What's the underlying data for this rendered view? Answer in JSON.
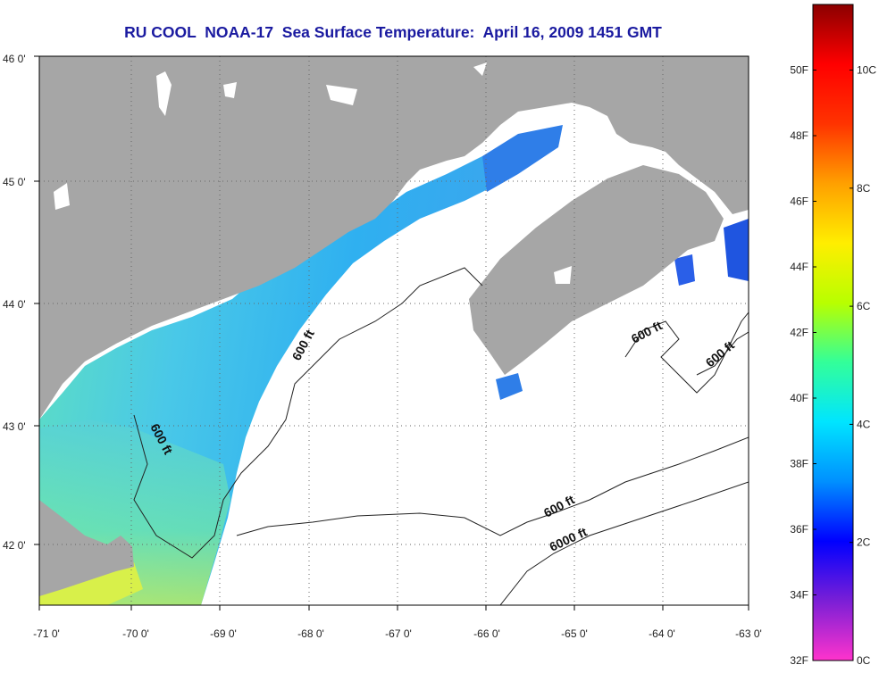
{
  "title": "RU COOL  NOAA-17  Sea Surface Temperature:  April 16, 2009 1451 GMT",
  "longitude_ticks": [
    "-71 0'",
    "-70 0'",
    "-69 0'",
    "-68 0'",
    "-67 0'",
    "-66 0'",
    "-65 0'",
    "-64 0'",
    "-63 0'"
  ],
  "latitude_ticks": [
    "46 0'",
    "45 0'",
    "44 0'",
    "43 0'",
    "42 0'"
  ],
  "contour_labels": [
    "600 ft",
    "600 ft",
    "600 ft",
    "600 ft",
    "600 ft",
    "6000 ft"
  ],
  "colorbar": {
    "fahrenheit_ticks": [
      "32F",
      "34F",
      "36F",
      "38F",
      "40F",
      "42F",
      "44F",
      "46F",
      "48F",
      "50F"
    ],
    "celsius_ticks": [
      "0C",
      "2C",
      "4C",
      "6C",
      "8C",
      "10C"
    ],
    "colors": [
      "#ff33cc",
      "#7a1fd6",
      "#0000ff",
      "#0090ff",
      "#00e5ff",
      "#33ff99",
      "#b8ff00",
      "#ffee00",
      "#ffa000",
      "#ff3300",
      "#ff0000",
      "#8b0000"
    ]
  },
  "colors": {
    "land": "#a6a6a6",
    "ocean_no_data": "#ffffff",
    "title": "#1a1aa0"
  }
}
